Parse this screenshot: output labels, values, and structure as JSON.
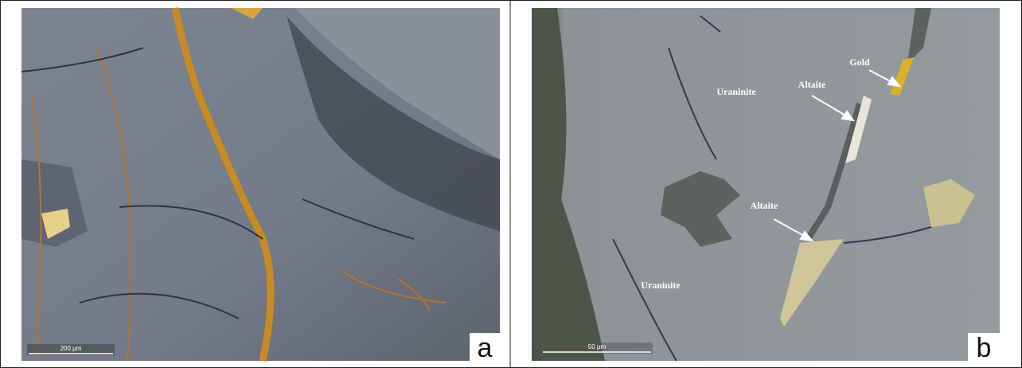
{
  "panels": [
    {
      "label": "a",
      "scale_bar": "200 µm",
      "annotations": []
    },
    {
      "label": "b",
      "scale_bar": "50 µm",
      "annotations": [
        "Uraninite",
        "Altaite",
        "Gold",
        "Altaite",
        "Uraninite"
      ]
    }
  ]
}
